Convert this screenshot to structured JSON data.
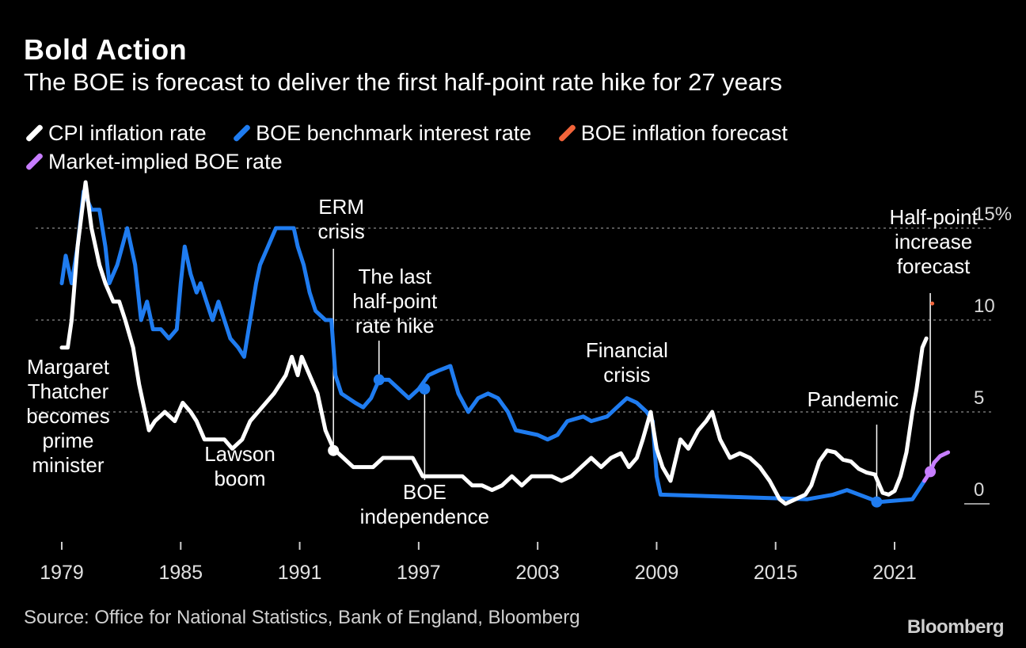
{
  "title": "Bold Action",
  "subtitle": "The BOE is forecast to deliver the first half-point rate hike for 27 years",
  "legend": [
    {
      "label": "CPI inflation rate",
      "color": "#ffffff"
    },
    {
      "label": "BOE benchmark interest rate",
      "color": "#1f7cf0"
    },
    {
      "label": "BOE inflation forecast",
      "color": "#f2643a"
    },
    {
      "label": "Market-implied BOE rate",
      "color": "#c77dff"
    }
  ],
  "source": "Source: Office for National Statistics, Bank of England, Bloomberg",
  "brand": "Bloomberg",
  "chart_data": {
    "type": "line",
    "xlim": [
      1978,
      2024
    ],
    "ylim": [
      0,
      16
    ],
    "y_axis_side": "right",
    "grid": "dashed horizontal",
    "x_ticks": [
      "1979",
      "1985",
      "1991",
      "1997",
      "2003",
      "2009",
      "2015",
      "2021"
    ],
    "y_ticks": [
      {
        "value": 0,
        "label": "0"
      },
      {
        "value": 5,
        "label": "5"
      },
      {
        "value": 10,
        "label": "10"
      },
      {
        "value": 15,
        "label": "15%"
      }
    ],
    "series": [
      {
        "name": "BOE benchmark interest rate",
        "color": "#1f7cf0",
        "points": [
          [
            1979.0,
            12.0
          ],
          [
            1979.2,
            13.5
          ],
          [
            1979.5,
            12.0
          ],
          [
            1979.8,
            14.0
          ],
          [
            1980.1,
            17.0
          ],
          [
            1980.5,
            16.0
          ],
          [
            1980.9,
            16.0
          ],
          [
            1981.2,
            14.0
          ],
          [
            1981.4,
            12.0
          ],
          [
            1981.8,
            13.0
          ],
          [
            1982.3,
            15.0
          ],
          [
            1982.7,
            13.0
          ],
          [
            1983.0,
            10.0
          ],
          [
            1983.3,
            11.0
          ],
          [
            1983.6,
            9.5
          ],
          [
            1984.0,
            9.5
          ],
          [
            1984.4,
            9.0
          ],
          [
            1984.8,
            9.5
          ],
          [
            1985.0,
            12.0
          ],
          [
            1985.2,
            14.0
          ],
          [
            1985.5,
            12.5
          ],
          [
            1985.8,
            11.5
          ],
          [
            1986.0,
            12.0
          ],
          [
            1986.3,
            11.0
          ],
          [
            1986.6,
            10.0
          ],
          [
            1986.9,
            11.0
          ],
          [
            1987.2,
            10.0
          ],
          [
            1987.5,
            9.0
          ],
          [
            1987.9,
            8.5
          ],
          [
            1988.2,
            8.0
          ],
          [
            1988.5,
            10.0
          ],
          [
            1988.8,
            12.0
          ],
          [
            1989.0,
            13.0
          ],
          [
            1989.4,
            14.0
          ],
          [
            1989.8,
            15.0
          ],
          [
            1990.7,
            15.0
          ],
          [
            1990.9,
            14.0
          ],
          [
            1991.2,
            13.0
          ],
          [
            1991.5,
            11.5
          ],
          [
            1991.8,
            10.5
          ],
          [
            1992.3,
            10.0
          ],
          [
            1992.6,
            10.0
          ],
          [
            1992.8,
            7.0
          ],
          [
            1993.1,
            6.0
          ],
          [
            1993.8,
            5.5
          ],
          [
            1994.2,
            5.25
          ],
          [
            1994.6,
            5.75
          ],
          [
            1995.0,
            6.75
          ],
          [
            1995.5,
            6.75
          ],
          [
            1996.0,
            6.25
          ],
          [
            1996.5,
            5.75
          ],
          [
            1997.0,
            6.25
          ],
          [
            1997.5,
            7.0
          ],
          [
            1998.0,
            7.25
          ],
          [
            1998.6,
            7.5
          ],
          [
            1999.0,
            6.0
          ],
          [
            1999.5,
            5.0
          ],
          [
            2000.0,
            5.75
          ],
          [
            2000.5,
            6.0
          ],
          [
            2001.0,
            5.75
          ],
          [
            2001.5,
            5.0
          ],
          [
            2001.9,
            4.0
          ],
          [
            2003.0,
            3.75
          ],
          [
            2003.5,
            3.5
          ],
          [
            2004.0,
            3.75
          ],
          [
            2004.5,
            4.5
          ],
          [
            2005.3,
            4.75
          ],
          [
            2005.7,
            4.5
          ],
          [
            2006.5,
            4.75
          ],
          [
            2007.0,
            5.25
          ],
          [
            2007.5,
            5.75
          ],
          [
            2008.0,
            5.5
          ],
          [
            2008.5,
            5.0
          ],
          [
            2008.8,
            4.5
          ],
          [
            2008.9,
            3.0
          ],
          [
            2009.0,
            1.5
          ],
          [
            2009.2,
            0.5
          ],
          [
            2016.6,
            0.25
          ],
          [
            2017.9,
            0.5
          ],
          [
            2018.6,
            0.75
          ],
          [
            2020.2,
            0.1
          ],
          [
            2021.9,
            0.25
          ],
          [
            2022.2,
            0.75
          ],
          [
            2022.5,
            1.25
          ]
        ]
      },
      {
        "name": "CPI inflation rate",
        "color": "#ffffff",
        "points": [
          [
            1979.0,
            8.5
          ],
          [
            1979.3,
            8.5
          ],
          [
            1979.5,
            10.0
          ],
          [
            1979.8,
            14.0
          ],
          [
            1980.2,
            17.5
          ],
          [
            1980.5,
            15.0
          ],
          [
            1980.9,
            13.0
          ],
          [
            1981.2,
            12.0
          ],
          [
            1981.6,
            11.0
          ],
          [
            1981.9,
            11.0
          ],
          [
            1982.2,
            10.0
          ],
          [
            1982.6,
            8.5
          ],
          [
            1982.9,
            6.5
          ],
          [
            1983.2,
            5.0
          ],
          [
            1983.4,
            4.0
          ],
          [
            1983.7,
            4.5
          ],
          [
            1984.2,
            5.0
          ],
          [
            1984.7,
            4.5
          ],
          [
            1985.1,
            5.5
          ],
          [
            1985.5,
            5.0
          ],
          [
            1985.8,
            4.5
          ],
          [
            1986.2,
            3.5
          ],
          [
            1986.7,
            3.5
          ],
          [
            1987.2,
            3.5
          ],
          [
            1987.6,
            3.0
          ],
          [
            1988.1,
            3.5
          ],
          [
            1988.5,
            4.5
          ],
          [
            1988.9,
            5.0
          ],
          [
            1989.3,
            5.5
          ],
          [
            1989.7,
            6.0
          ],
          [
            1990.3,
            7.0
          ],
          [
            1990.6,
            8.0
          ],
          [
            1990.9,
            7.0
          ],
          [
            1991.1,
            8.0
          ],
          [
            1991.5,
            7.0
          ],
          [
            1991.9,
            6.0
          ],
          [
            1992.3,
            4.0
          ],
          [
            1992.7,
            3.0
          ],
          [
            1993.2,
            2.5
          ],
          [
            1993.7,
            2.0
          ],
          [
            1994.2,
            2.0
          ],
          [
            1994.7,
            2.0
          ],
          [
            1995.2,
            2.5
          ],
          [
            1995.7,
            2.5
          ],
          [
            1996.2,
            2.5
          ],
          [
            1996.7,
            2.5
          ],
          [
            1997.2,
            1.5
          ],
          [
            1997.7,
            1.5
          ],
          [
            1998.2,
            1.5
          ],
          [
            1998.7,
            1.5
          ],
          [
            1999.2,
            1.5
          ],
          [
            1999.7,
            1.0
          ],
          [
            2000.2,
            1.0
          ],
          [
            2000.7,
            0.75
          ],
          [
            2001.2,
            1.0
          ],
          [
            2001.7,
            1.5
          ],
          [
            2002.2,
            1.0
          ],
          [
            2002.7,
            1.5
          ],
          [
            2003.2,
            1.5
          ],
          [
            2003.7,
            1.5
          ],
          [
            2004.2,
            1.25
          ],
          [
            2004.7,
            1.5
          ],
          [
            2005.2,
            2.0
          ],
          [
            2005.7,
            2.5
          ],
          [
            2006.2,
            2.0
          ],
          [
            2006.7,
            2.5
          ],
          [
            2007.2,
            2.75
          ],
          [
            2007.6,
            2.0
          ],
          [
            2008.0,
            2.5
          ],
          [
            2008.3,
            3.5
          ],
          [
            2008.7,
            5.0
          ],
          [
            2009.0,
            3.0
          ],
          [
            2009.3,
            2.0
          ],
          [
            2009.7,
            1.25
          ],
          [
            2010.2,
            3.5
          ],
          [
            2010.6,
            3.0
          ],
          [
            2011.1,
            4.0
          ],
          [
            2011.5,
            4.5
          ],
          [
            2011.8,
            5.0
          ],
          [
            2012.2,
            3.5
          ],
          [
            2012.7,
            2.5
          ],
          [
            2013.2,
            2.75
          ],
          [
            2013.7,
            2.5
          ],
          [
            2014.2,
            2.0
          ],
          [
            2014.7,
            1.25
          ],
          [
            2015.2,
            0.25
          ],
          [
            2015.5,
            0.0
          ],
          [
            2016.0,
            0.25
          ],
          [
            2016.5,
            0.5
          ],
          [
            2016.8,
            1.0
          ],
          [
            2017.2,
            2.3
          ],
          [
            2017.6,
            2.9
          ],
          [
            2018.0,
            2.8
          ],
          [
            2018.4,
            2.4
          ],
          [
            2018.8,
            2.3
          ],
          [
            2019.2,
            1.9
          ],
          [
            2019.6,
            1.7
          ],
          [
            2020.0,
            1.6
          ],
          [
            2020.4,
            0.6
          ],
          [
            2020.7,
            0.5
          ],
          [
            2021.0,
            0.7
          ],
          [
            2021.3,
            1.5
          ],
          [
            2021.6,
            2.8
          ],
          [
            2021.9,
            5.0
          ],
          [
            2022.1,
            6.2
          ],
          [
            2022.4,
            8.5
          ],
          [
            2022.6,
            9.0
          ]
        ]
      },
      {
        "name": "BOE inflation forecast",
        "color": "#f2643a",
        "points": [
          [
            2022.9,
            10.9
          ]
        ]
      },
      {
        "name": "Market-implied BOE rate",
        "color": "#c77dff",
        "points": [
          [
            2022.5,
            1.25
          ],
          [
            2022.8,
            1.75
          ],
          [
            2023.0,
            2.25
          ],
          [
            2023.3,
            2.6
          ],
          [
            2023.7,
            2.8
          ]
        ]
      }
    ],
    "annotations": [
      {
        "text": [
          "Margaret",
          "Thatcher",
          "becomes",
          "prime",
          "minister"
        ],
        "year": 1979.3,
        "side": "left"
      },
      {
        "text": [
          "ERM",
          "crisis"
        ],
        "year": 1992.7,
        "marker_series": "CPI inflation rate",
        "marker_value": 2.9
      },
      {
        "text": [
          "Lawson",
          "boom"
        ],
        "year": 1989.5
      },
      {
        "text": [
          "The last",
          "half-point",
          "rate hike"
        ],
        "year": 1995.0,
        "marker_series": "BOE benchmark interest rate",
        "marker_value": 6.75
      },
      {
        "text": [
          "BOE",
          "independence"
        ],
        "year": 1997.3,
        "marker_series": "BOE benchmark interest rate",
        "marker_value": 6.25
      },
      {
        "text": [
          "Financial",
          "crisis"
        ],
        "year": 2008.3
      },
      {
        "text": [
          "Pandemic"
        ],
        "year": 2020.1,
        "marker_series": "BOE benchmark interest rate",
        "marker_value": 0.1
      },
      {
        "text": [
          "Half-point",
          "increase",
          "forecast"
        ],
        "year": 2022.8,
        "marker_series": "Market-implied BOE rate",
        "marker_value": 1.75
      }
    ]
  }
}
